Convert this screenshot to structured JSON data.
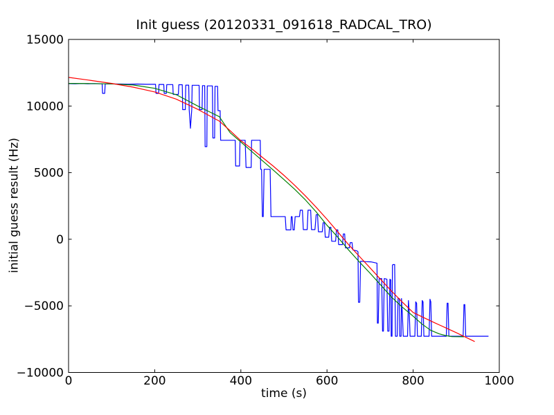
{
  "chart_data": {
    "type": "line",
    "title": "Init guess (20120331_091618_RADCAL_TRO)",
    "xlabel": "time (s)",
    "ylabel": "initial guess result (Hz)",
    "xlim": [
      0,
      1000
    ],
    "ylim": [
      -10000,
      15000
    ],
    "grid": false,
    "legend": null,
    "background": "#ffffff",
    "axis_color": "#000000",
    "xticks": {
      "values": [
        0,
        200,
        400,
        600,
        800,
        1000
      ],
      "labels": [
        "0",
        "200",
        "400",
        "600",
        "800",
        "1000"
      ]
    },
    "yticks": {
      "values": [
        -10000,
        -5000,
        0,
        5000,
        10000,
        15000
      ],
      "labels": [
        "−10000",
        "−5000",
        "0",
        "5000",
        "10000",
        "15000"
      ]
    },
    "series": [
      {
        "name": "blue-line",
        "color": "#0000ff",
        "points": [
          [
            0,
            11680
          ],
          [
            15,
            11670
          ],
          [
            30,
            11690
          ],
          [
            45,
            11670
          ],
          [
            60,
            11680
          ],
          [
            75,
            11670
          ],
          [
            78,
            11670
          ],
          [
            79,
            10950
          ],
          [
            84,
            10950
          ],
          [
            85,
            11660
          ],
          [
            100,
            11660
          ],
          [
            120,
            11650
          ],
          [
            140,
            11640
          ],
          [
            160,
            11650
          ],
          [
            180,
            11630
          ],
          [
            200,
            11630
          ],
          [
            202,
            11630
          ],
          [
            203,
            10950
          ],
          [
            209,
            10950
          ],
          [
            210,
            11620
          ],
          [
            221,
            11620
          ],
          [
            222,
            10950
          ],
          [
            227,
            10950
          ],
          [
            228,
            11610
          ],
          [
            242,
            11610
          ],
          [
            243,
            10870
          ],
          [
            255,
            10870
          ],
          [
            256,
            11600
          ],
          [
            264,
            11600
          ],
          [
            265,
            9730
          ],
          [
            271,
            9730
          ],
          [
            272,
            11570
          ],
          [
            279,
            11570
          ],
          [
            280,
            9730
          ],
          [
            283,
            8330
          ],
          [
            286,
            9730
          ],
          [
            287,
            11560
          ],
          [
            303,
            11560
          ],
          [
            304,
            9730
          ],
          [
            310,
            9730
          ],
          [
            311,
            11530
          ],
          [
            316,
            11530
          ],
          [
            317,
            6950
          ],
          [
            321,
            6950
          ],
          [
            322,
            11510
          ],
          [
            328,
            11510
          ],
          [
            334,
            11510
          ],
          [
            335,
            7600
          ],
          [
            339,
            7600
          ],
          [
            340,
            11480
          ],
          [
            346,
            11480
          ],
          [
            347,
            9650
          ],
          [
            352,
            9650
          ],
          [
            353,
            7430
          ],
          [
            387,
            7430
          ],
          [
            388,
            5500
          ],
          [
            397,
            5500
          ],
          [
            398,
            7430
          ],
          [
            410,
            7430
          ],
          [
            412,
            5390
          ],
          [
            424,
            5390
          ],
          [
            425,
            7430
          ],
          [
            445,
            7430
          ],
          [
            446,
            5250
          ],
          [
            448,
            5250
          ],
          [
            450,
            1700
          ],
          [
            452,
            1700
          ],
          [
            454,
            5250
          ],
          [
            468,
            5250
          ],
          [
            470,
            1700
          ],
          [
            503,
            1700
          ],
          [
            505,
            700
          ],
          [
            516,
            700
          ],
          [
            517,
            1700
          ],
          [
            519,
            1700
          ],
          [
            521,
            700
          ],
          [
            524,
            700
          ],
          [
            526,
            1700
          ],
          [
            536,
            1700
          ],
          [
            538,
            2180
          ],
          [
            543,
            2180
          ],
          [
            545,
            720
          ],
          [
            554,
            720
          ],
          [
            556,
            2180
          ],
          [
            562,
            2180
          ],
          [
            564,
            720
          ],
          [
            572,
            720
          ],
          [
            575,
            1850
          ],
          [
            578,
            1850
          ],
          [
            580,
            560
          ],
          [
            589,
            560
          ],
          [
            591,
            1240
          ],
          [
            594,
            1240
          ],
          [
            596,
            150
          ],
          [
            604,
            150
          ],
          [
            606,
            900
          ],
          [
            609,
            900
          ],
          [
            611,
            -150
          ],
          [
            620,
            -150
          ],
          [
            622,
            700
          ],
          [
            625,
            700
          ],
          [
            627,
            -400
          ],
          [
            636,
            -400
          ],
          [
            638,
            400
          ],
          [
            641,
            400
          ],
          [
            643,
            -650
          ],
          [
            652,
            -650
          ],
          [
            654,
            -250
          ],
          [
            658,
            -250
          ],
          [
            660,
            -800
          ],
          [
            670,
            -880
          ],
          [
            672,
            -950
          ],
          [
            673,
            -4730
          ],
          [
            676,
            -4730
          ],
          [
            678,
            -1650
          ],
          [
            690,
            -1680
          ],
          [
            702,
            -1700
          ],
          [
            714,
            -1780
          ],
          [
            716,
            -1800
          ],
          [
            717,
            -6300
          ],
          [
            719,
            -6300
          ],
          [
            721,
            -2950
          ],
          [
            727,
            -2950
          ],
          [
            729,
            -6900
          ],
          [
            731,
            -6900
          ],
          [
            733,
            -2950
          ],
          [
            739,
            -3000
          ],
          [
            741,
            -6900
          ],
          [
            744,
            -6900
          ],
          [
            746,
            -3000
          ],
          [
            748,
            -3050
          ],
          [
            749,
            -7280
          ],
          [
            751,
            -7280
          ],
          [
            752,
            -1950
          ],
          [
            753,
            -1900
          ],
          [
            757,
            -1900
          ],
          [
            759,
            -7280
          ],
          [
            763,
            -7280
          ],
          [
            765,
            -4450
          ],
          [
            768,
            -4450
          ],
          [
            769,
            -7280
          ],
          [
            772,
            -7280
          ],
          [
            773,
            -4450
          ],
          [
            775,
            -5600
          ],
          [
            777,
            -7280
          ],
          [
            787,
            -7280
          ],
          [
            789,
            -4600
          ],
          [
            791,
            -5500
          ],
          [
            793,
            -7280
          ],
          [
            804,
            -7280
          ],
          [
            806,
            -4700
          ],
          [
            808,
            -4800
          ],
          [
            810,
            -7280
          ],
          [
            819,
            -7280
          ],
          [
            821,
            -4600
          ],
          [
            823,
            -4700
          ],
          [
            825,
            -7280
          ],
          [
            837,
            -7280
          ],
          [
            839,
            -4500
          ],
          [
            841,
            -4700
          ],
          [
            843,
            -7280
          ],
          [
            860,
            -7280
          ],
          [
            877,
            -7280
          ],
          [
            879,
            -4800
          ],
          [
            881,
            -4800
          ],
          [
            883,
            -7280
          ],
          [
            900,
            -7280
          ],
          [
            916,
            -7280
          ],
          [
            918,
            -4900
          ],
          [
            920,
            -4900
          ],
          [
            922,
            -7280
          ],
          [
            940,
            -7280
          ],
          [
            975,
            -7280
          ]
        ]
      },
      {
        "name": "green-curve",
        "color": "#007f00",
        "points": [
          [
            0,
            11700
          ],
          [
            50,
            11690
          ],
          [
            100,
            11660
          ],
          [
            150,
            11580
          ],
          [
            200,
            11330
          ],
          [
            250,
            10850
          ],
          [
            300,
            10000
          ],
          [
            325,
            9600
          ],
          [
            350,
            9200
          ],
          [
            375,
            8000
          ],
          [
            400,
            7300
          ],
          [
            425,
            6600
          ],
          [
            450,
            5900
          ],
          [
            475,
            5200
          ],
          [
            500,
            4480
          ],
          [
            525,
            3750
          ],
          [
            550,
            2950
          ],
          [
            575,
            2050
          ],
          [
            600,
            1050
          ],
          [
            625,
            150
          ],
          [
            650,
            -800
          ],
          [
            675,
            -1700
          ],
          [
            700,
            -2550
          ],
          [
            725,
            -3450
          ],
          [
            750,
            -4350
          ],
          [
            775,
            -5100
          ],
          [
            800,
            -5780
          ],
          [
            820,
            -6350
          ],
          [
            840,
            -6820
          ],
          [
            860,
            -7100
          ],
          [
            875,
            -7230
          ],
          [
            890,
            -7310
          ],
          [
            918,
            -7320
          ]
        ]
      },
      {
        "name": "red-curve",
        "color": "#ff0000",
        "points": [
          [
            0,
            12150
          ],
          [
            50,
            11930
          ],
          [
            100,
            11700
          ],
          [
            150,
            11420
          ],
          [
            200,
            11060
          ],
          [
            250,
            10520
          ],
          [
            300,
            9750
          ],
          [
            350,
            8870
          ],
          [
            375,
            8150
          ],
          [
            400,
            7400
          ],
          [
            425,
            6800
          ],
          [
            450,
            6150
          ],
          [
            475,
            5500
          ],
          [
            500,
            4800
          ],
          [
            525,
            4050
          ],
          [
            550,
            3250
          ],
          [
            575,
            2400
          ],
          [
            600,
            1500
          ],
          [
            625,
            550
          ],
          [
            650,
            -400
          ],
          [
            675,
            -1280
          ],
          [
            700,
            -2150
          ],
          [
            725,
            -3030
          ],
          [
            750,
            -3900
          ],
          [
            775,
            -4720
          ],
          [
            800,
            -5500
          ],
          [
            825,
            -5890
          ],
          [
            850,
            -6270
          ],
          [
            875,
            -6640
          ],
          [
            900,
            -7010
          ],
          [
            920,
            -7320
          ],
          [
            943,
            -7680
          ]
        ]
      }
    ]
  }
}
